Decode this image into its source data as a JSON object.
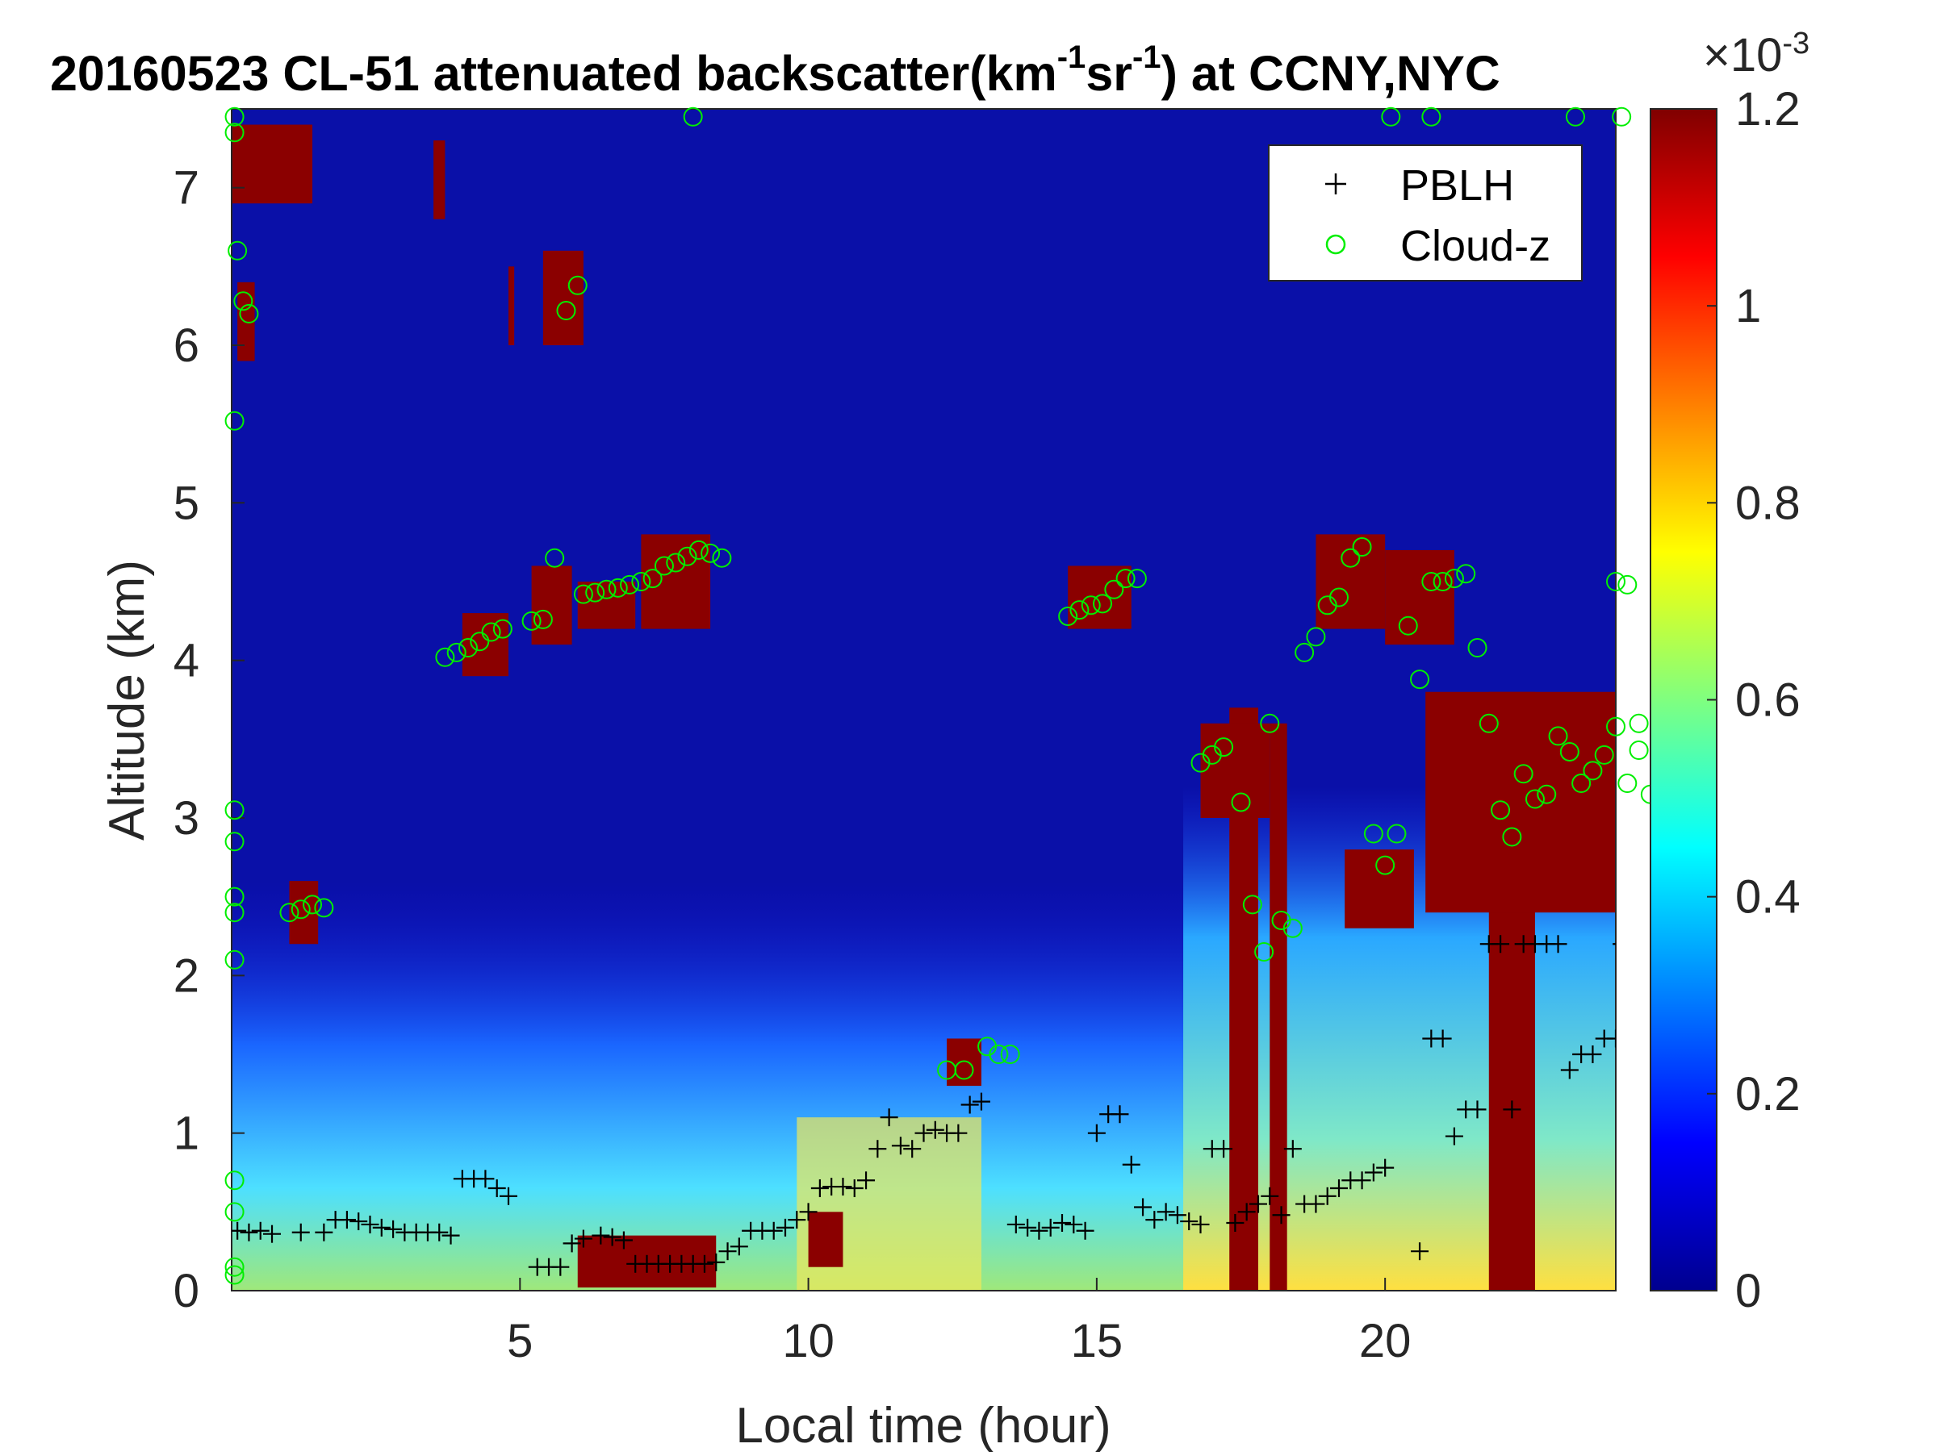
{
  "chart_data": {
    "type": "heatmap",
    "title": "20160523  CL-51 attenuated backscatter(km",
    "title_sup1": "-1",
    "title_mid": "sr",
    "title_sup2": "-1",
    "title_end": ") at CCNY,NYC",
    "xlabel": "Local time (hour)",
    "ylabel": "Altitude (km)",
    "xlim": [
      0,
      24
    ],
    "ylim": [
      0,
      7.5
    ],
    "xticks": [
      5,
      10,
      15,
      20
    ],
    "yticks": [
      0,
      1,
      2,
      3,
      4,
      5,
      6,
      7
    ],
    "colorbar": {
      "colormap": "jet",
      "range": [
        0,
        1.2
      ],
      "ticks": [
        "0",
        "0.2",
        "0.4",
        "0.6",
        "0.8",
        "1",
        "1.2"
      ],
      "tick_values": [
        0,
        0.2,
        0.4,
        0.6,
        0.8,
        1.0,
        1.2
      ],
      "exponent_label": "×10",
      "exponent_power": "-3"
    },
    "legend": {
      "placement": "top-right",
      "entries": [
        {
          "name": "PBLH",
          "marker": "+",
          "color": "#000000"
        },
        {
          "name": "Cloud-z",
          "marker": "o",
          "color": "#00ee00"
        }
      ]
    },
    "series": [
      {
        "name": "PBLH",
        "points": [
          [
            0.1,
            0.38
          ],
          [
            0.3,
            0.37
          ],
          [
            0.5,
            0.38
          ],
          [
            0.7,
            0.36
          ],
          [
            1.2,
            0.37
          ],
          [
            1.6,
            0.37
          ],
          [
            1.8,
            0.45
          ],
          [
            2.0,
            0.45
          ],
          [
            2.2,
            0.44
          ],
          [
            2.4,
            0.42
          ],
          [
            2.6,
            0.4
          ],
          [
            2.8,
            0.39
          ],
          [
            3.0,
            0.37
          ],
          [
            3.2,
            0.37
          ],
          [
            3.4,
            0.37
          ],
          [
            3.6,
            0.37
          ],
          [
            3.8,
            0.35
          ],
          [
            4.0,
            0.71
          ],
          [
            4.2,
            0.71
          ],
          [
            4.4,
            0.71
          ],
          [
            4.6,
            0.65
          ],
          [
            4.8,
            0.6
          ],
          [
            5.3,
            0.15
          ],
          [
            5.5,
            0.15
          ],
          [
            5.7,
            0.15
          ],
          [
            5.9,
            0.3
          ],
          [
            6.1,
            0.33
          ],
          [
            6.4,
            0.35
          ],
          [
            6.6,
            0.34
          ],
          [
            6.8,
            0.32
          ],
          [
            7.0,
            0.17
          ],
          [
            7.2,
            0.17
          ],
          [
            7.4,
            0.17
          ],
          [
            7.6,
            0.17
          ],
          [
            7.8,
            0.17
          ],
          [
            8.0,
            0.17
          ],
          [
            8.2,
            0.17
          ],
          [
            8.4,
            0.18
          ],
          [
            8.6,
            0.25
          ],
          [
            8.8,
            0.28
          ],
          [
            9.0,
            0.38
          ],
          [
            9.2,
            0.38
          ],
          [
            9.4,
            0.38
          ],
          [
            9.6,
            0.4
          ],
          [
            9.8,
            0.45
          ],
          [
            10.0,
            0.5
          ],
          [
            10.2,
            0.65
          ],
          [
            10.4,
            0.66
          ],
          [
            10.6,
            0.66
          ],
          [
            10.8,
            0.65
          ],
          [
            11.0,
            0.7
          ],
          [
            11.2,
            0.9
          ],
          [
            11.4,
            1.1
          ],
          [
            11.6,
            0.92
          ],
          [
            11.8,
            0.9
          ],
          [
            12.0,
            1.0
          ],
          [
            12.2,
            1.02
          ],
          [
            12.4,
            1.0
          ],
          [
            12.6,
            1.0
          ],
          [
            12.8,
            1.18
          ],
          [
            13.0,
            1.2
          ],
          [
            13.6,
            0.42
          ],
          [
            13.8,
            0.4
          ],
          [
            14.0,
            0.38
          ],
          [
            14.2,
            0.4
          ],
          [
            14.4,
            0.43
          ],
          [
            14.6,
            0.42
          ],
          [
            14.8,
            0.38
          ],
          [
            15.0,
            1.0
          ],
          [
            15.2,
            1.12
          ],
          [
            15.4,
            1.12
          ],
          [
            15.6,
            0.8
          ],
          [
            15.8,
            0.53
          ],
          [
            16.0,
            0.45
          ],
          [
            16.2,
            0.5
          ],
          [
            16.4,
            0.48
          ],
          [
            16.6,
            0.44
          ],
          [
            16.8,
            0.42
          ],
          [
            17.0,
            0.9
          ],
          [
            17.2,
            0.9
          ],
          [
            17.4,
            0.43
          ],
          [
            17.6,
            0.5
          ],
          [
            17.8,
            0.55
          ],
          [
            18.0,
            0.6
          ],
          [
            18.2,
            0.48
          ],
          [
            18.4,
            0.9
          ],
          [
            18.6,
            0.55
          ],
          [
            18.8,
            0.55
          ],
          [
            19.0,
            0.6
          ],
          [
            19.2,
            0.65
          ],
          [
            19.4,
            0.7
          ],
          [
            19.6,
            0.7
          ],
          [
            19.8,
            0.75
          ],
          [
            20.0,
            0.78
          ],
          [
            20.6,
            0.25
          ],
          [
            20.8,
            1.6
          ],
          [
            21.0,
            1.6
          ],
          [
            21.2,
            0.98
          ],
          [
            21.4,
            1.15
          ],
          [
            21.6,
            1.15
          ],
          [
            21.8,
            2.2
          ],
          [
            22.0,
            2.2
          ],
          [
            22.2,
            1.15
          ],
          [
            22.4,
            2.2
          ],
          [
            22.6,
            2.2
          ],
          [
            22.8,
            2.2
          ],
          [
            23.0,
            2.2
          ],
          [
            23.2,
            1.4
          ],
          [
            23.4,
            1.5
          ],
          [
            23.6,
            1.5
          ],
          [
            23.8,
            1.6
          ],
          [
            24.0,
            1.6
          ],
          [
            24.1,
            2.2
          ]
        ]
      },
      {
        "name": "Cloud-z",
        "points": [
          [
            0.05,
            7.45
          ],
          [
            0.05,
            7.35
          ],
          [
            0.1,
            6.6
          ],
          [
            0.2,
            6.28
          ],
          [
            0.3,
            6.2
          ],
          [
            0.05,
            5.52
          ],
          [
            0.05,
            3.05
          ],
          [
            0.05,
            2.85
          ],
          [
            0.05,
            2.5
          ],
          [
            0.05,
            2.4
          ],
          [
            0.05,
            2.1
          ],
          [
            0.05,
            0.7
          ],
          [
            0.05,
            0.5
          ],
          [
            0.05,
            0.15
          ],
          [
            0.05,
            0.1
          ],
          [
            1.0,
            2.4
          ],
          [
            1.2,
            2.42
          ],
          [
            1.4,
            2.45
          ],
          [
            1.6,
            2.43
          ],
          [
            3.7,
            4.02
          ],
          [
            3.9,
            4.05
          ],
          [
            4.1,
            4.08
          ],
          [
            4.3,
            4.12
          ],
          [
            4.5,
            4.18
          ],
          [
            4.7,
            4.2
          ],
          [
            5.2,
            4.25
          ],
          [
            5.4,
            4.26
          ],
          [
            5.6,
            4.65
          ],
          [
            5.8,
            6.22
          ],
          [
            6.0,
            6.38
          ],
          [
            6.1,
            4.42
          ],
          [
            6.3,
            4.43
          ],
          [
            6.5,
            4.45
          ],
          [
            6.7,
            4.46
          ],
          [
            6.9,
            4.48
          ],
          [
            7.1,
            4.5
          ],
          [
            7.3,
            4.52
          ],
          [
            7.5,
            4.6
          ],
          [
            7.7,
            4.62
          ],
          [
            7.9,
            4.66
          ],
          [
            8.1,
            4.7
          ],
          [
            8.3,
            4.68
          ],
          [
            8.5,
            4.65
          ],
          [
            12.4,
            1.4
          ],
          [
            12.7,
            1.4
          ],
          [
            13.1,
            1.55
          ],
          [
            13.3,
            1.5
          ],
          [
            13.5,
            1.5
          ],
          [
            14.5,
            4.28
          ],
          [
            14.7,
            4.32
          ],
          [
            14.9,
            4.35
          ],
          [
            15.1,
            4.36
          ],
          [
            15.3,
            4.45
          ],
          [
            15.5,
            4.52
          ],
          [
            15.7,
            4.52
          ],
          [
            16.8,
            3.35
          ],
          [
            17.0,
            3.4
          ],
          [
            17.2,
            3.45
          ],
          [
            17.5,
            3.1
          ],
          [
            17.7,
            2.45
          ],
          [
            17.9,
            2.15
          ],
          [
            18.0,
            3.6
          ],
          [
            18.2,
            2.35
          ],
          [
            18.4,
            2.3
          ],
          [
            18.6,
            4.05
          ],
          [
            18.8,
            4.15
          ],
          [
            19.0,
            4.35
          ],
          [
            19.2,
            4.4
          ],
          [
            19.4,
            4.65
          ],
          [
            19.6,
            4.72
          ],
          [
            19.8,
            2.9
          ],
          [
            20.0,
            2.7
          ],
          [
            20.2,
            2.9
          ],
          [
            20.4,
            4.22
          ],
          [
            20.6,
            3.88
          ],
          [
            20.8,
            4.5
          ],
          [
            21.0,
            4.5
          ],
          [
            21.2,
            4.52
          ],
          [
            21.4,
            4.55
          ],
          [
            21.6,
            4.08
          ],
          [
            21.8,
            3.6
          ],
          [
            22.0,
            3.05
          ],
          [
            22.2,
            2.88
          ],
          [
            22.4,
            3.28
          ],
          [
            22.6,
            3.12
          ],
          [
            22.8,
            3.15
          ],
          [
            23.0,
            3.52
          ],
          [
            23.2,
            3.42
          ],
          [
            23.4,
            3.22
          ],
          [
            23.6,
            3.3
          ],
          [
            23.8,
            3.4
          ],
          [
            24.0,
            3.58
          ],
          [
            24.2,
            3.22
          ],
          [
            24.4,
            3.6
          ],
          [
            24.0,
            4.5
          ],
          [
            24.2,
            4.48
          ],
          [
            24.4,
            3.43
          ],
          [
            24.6,
            3.15
          ],
          [
            24.8,
            3.15
          ],
          [
            25.0,
            3.15
          ],
          [
            8.0,
            7.45
          ],
          [
            20.1,
            7.45
          ],
          [
            20.8,
            7.45
          ],
          [
            23.3,
            7.45
          ],
          [
            24.1,
            7.45
          ]
        ]
      }
    ]
  }
}
